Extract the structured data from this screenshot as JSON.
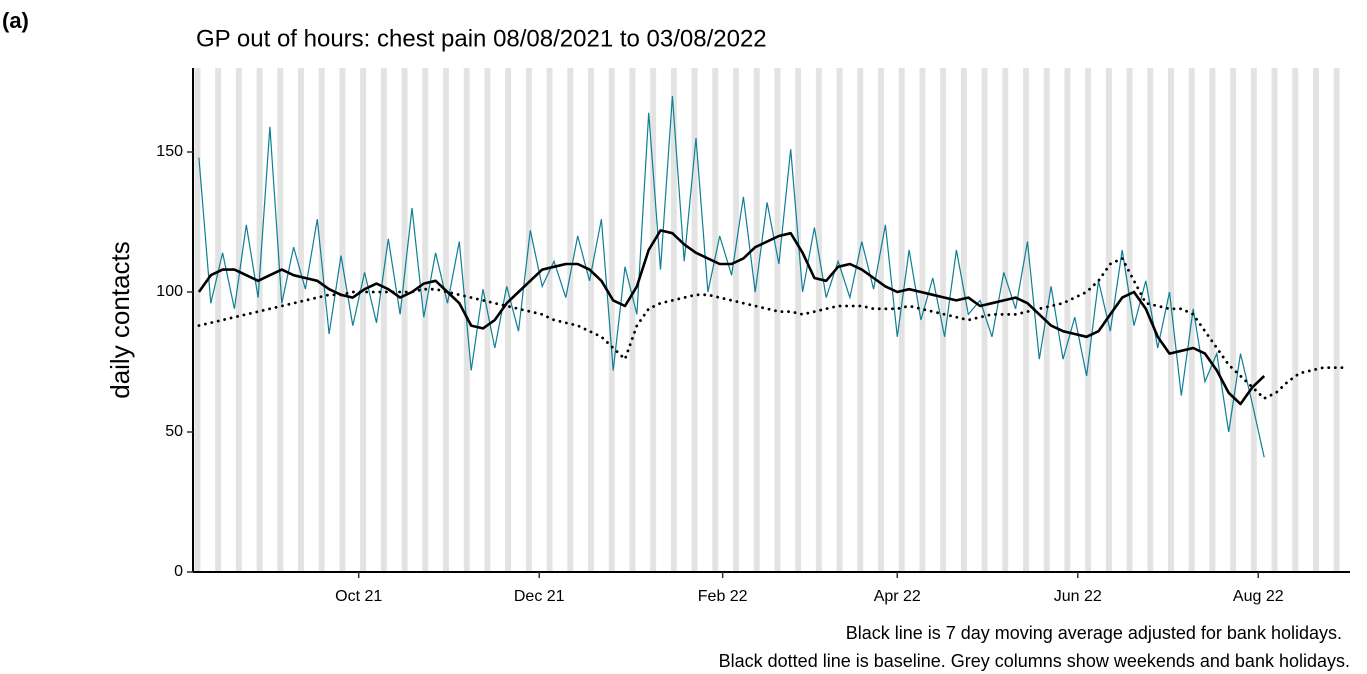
{
  "panel_label": "(a)",
  "chart_data": {
    "type": "line",
    "title": "GP out of hours: chest pain 08/08/2021 to 03/08/2022",
    "y_label": "daily contacts",
    "notes": [
      "Black line is 7 day moving average adjusted for bank holidays.",
      "Black dotted line is baseline. Grey columns show weekends and bank holidays."
    ],
    "weekend_shading": true,
    "xlim": [
      -2,
      389
    ],
    "ylim": [
      0,
      180
    ],
    "yticks": [
      0,
      50,
      100,
      150
    ],
    "xticks": [
      {
        "value": 54,
        "label": "Oct 21"
      },
      {
        "value": 115,
        "label": "Dec 21"
      },
      {
        "value": 177,
        "label": "Feb 22"
      },
      {
        "value": 236,
        "label": "Apr 22"
      },
      {
        "value": 297,
        "label": "Jun 22"
      },
      {
        "value": 358,
        "label": "Aug 22"
      }
    ],
    "x": [
      0,
      4,
      8,
      12,
      16,
      20,
      24,
      28,
      32,
      36,
      40,
      44,
      48,
      52,
      56,
      60,
      64,
      68,
      72,
      76,
      80,
      84,
      88,
      92,
      96,
      100,
      104,
      108,
      112,
      116,
      120,
      124,
      128,
      132,
      136,
      140,
      144,
      148,
      152,
      156,
      160,
      164,
      168,
      172,
      176,
      180,
      184,
      188,
      192,
      196,
      200,
      204,
      208,
      212,
      216,
      220,
      224,
      228,
      232,
      236,
      240,
      244,
      248,
      252,
      256,
      260,
      264,
      268,
      272,
      276,
      280,
      284,
      288,
      292,
      296,
      300,
      304,
      308,
      312,
      316,
      320,
      324,
      328,
      332,
      336,
      340,
      344,
      348,
      352,
      356,
      360,
      364,
      368,
      372,
      376,
      380,
      384,
      388
    ],
    "series": [
      {
        "color": "#0e7f95",
        "style": "thin",
        "values": [
          148,
          96,
          114,
          94,
          124,
          98,
          159,
          96,
          116,
          101,
          126,
          85,
          113,
          88,
          107,
          89,
          119,
          92,
          130,
          91,
          114,
          96,
          118,
          72,
          101,
          80,
          102,
          86,
          122,
          102,
          111,
          98,
          120,
          104,
          126,
          72,
          109,
          92,
          164,
          108,
          170,
          111,
          155,
          100,
          120,
          106,
          134,
          100,
          132,
          110,
          151,
          100,
          123,
          98,
          111,
          98,
          118,
          101,
          124,
          84,
          115,
          90,
          105,
          84,
          115,
          92,
          97,
          84,
          107,
          94,
          118,
          76,
          102,
          76,
          91,
          70,
          104,
          86,
          115,
          88,
          104,
          80,
          100,
          63,
          94,
          68,
          78,
          50,
          78,
          60,
          41,
          null,
          null,
          null,
          null,
          null,
          null,
          null
        ]
      },
      {
        "color": "#000000",
        "style": "thick",
        "values": [
          100,
          106,
          108,
          108,
          106,
          104,
          106,
          108,
          106,
          105,
          104,
          101,
          99,
          98,
          101,
          103,
          101,
          98,
          100,
          103,
          104,
          100,
          96,
          88,
          87,
          90,
          96,
          100,
          104,
          108,
          109,
          110,
          110,
          108,
          104,
          97,
          95,
          102,
          115,
          122,
          121,
          117,
          114,
          112,
          110,
          110,
          112,
          116,
          118,
          120,
          121,
          114,
          105,
          104,
          109,
          110,
          108,
          105,
          102,
          100,
          101,
          100,
          99,
          98,
          97,
          98,
          95,
          96,
          97,
          98,
          96,
          92,
          88,
          86,
          85,
          84,
          86,
          92,
          98,
          100,
          94,
          84,
          78,
          79,
          80,
          78,
          72,
          64,
          60,
          66,
          70,
          null,
          null,
          null,
          null,
          null,
          null,
          null
        ]
      },
      {
        "color": "#000000",
        "style": "dotted",
        "values": [
          88,
          89,
          90,
          91,
          92,
          93,
          94,
          95,
          96,
          97,
          98,
          99,
          99,
          100,
          100,
          100,
          100,
          100,
          100,
          101,
          101,
          100,
          99,
          98,
          97,
          96,
          95,
          94,
          93,
          92,
          90,
          89,
          88,
          86,
          84,
          80,
          76,
          88,
          94,
          96,
          97,
          98,
          99,
          99,
          98,
          97,
          96,
          95,
          94,
          93,
          93,
          92,
          93,
          94,
          95,
          95,
          95,
          94,
          94,
          94,
          95,
          94,
          93,
          92,
          91,
          90,
          91,
          92,
          92,
          92,
          93,
          94,
          95,
          96,
          98,
          100,
          104,
          110,
          112,
          104,
          96,
          95,
          94,
          94,
          92,
          86,
          80,
          74,
          70,
          66,
          62,
          64,
          68,
          71,
          72,
          73,
          73,
          73
        ]
      }
    ]
  }
}
